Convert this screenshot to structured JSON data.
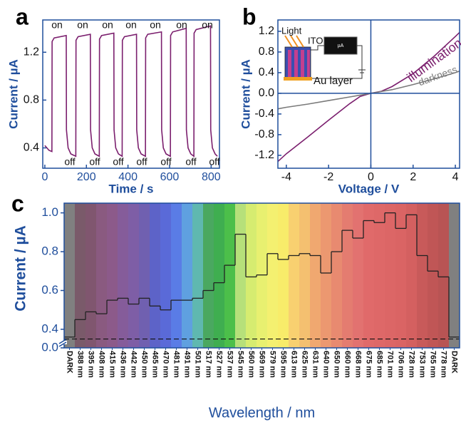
{
  "chart_data": [
    {
      "type": "line",
      "panel_label": "a",
      "x_label": "Time / s",
      "y_label": "Current / µA",
      "x": [
        0,
        20,
        34,
        35,
        45,
        103,
        104,
        112,
        125,
        149,
        150,
        160,
        219,
        220,
        228,
        241,
        262,
        263,
        273,
        332,
        333,
        341,
        354,
        372,
        373,
        383,
        441,
        442,
        450,
        463,
        484,
        485,
        495,
        561,
        562,
        570,
        583,
        604,
        605,
        615,
        680,
        681,
        689,
        702,
        717,
        718,
        728,
        797,
        798,
        806,
        819,
        830
      ],
      "series": [
        {
          "color": "#7b1f6e",
          "values": [
            0.42,
            0.38,
            0.37,
            1.29,
            1.32,
            1.34,
            0.55,
            0.4,
            0.35,
            0.33,
            1.3,
            1.33,
            1.35,
            0.55,
            0.4,
            0.35,
            0.33,
            1.31,
            1.34,
            1.36,
            0.55,
            0.4,
            0.35,
            0.33,
            1.3,
            1.33,
            1.35,
            0.55,
            0.4,
            0.35,
            0.33,
            1.32,
            1.35,
            1.37,
            0.55,
            0.4,
            0.35,
            0.33,
            1.34,
            1.37,
            1.4,
            0.55,
            0.4,
            0.35,
            0.33,
            1.36,
            1.39,
            1.42,
            0.55,
            0.4,
            0.35,
            0.33
          ]
        }
      ],
      "xlim": [
        -10,
        840
      ],
      "xticks": [
        0,
        200,
        400,
        600,
        800
      ],
      "ylim": [
        0.23,
        1.47
      ],
      "yticks": [
        0.4,
        0.8,
        1.2
      ],
      "on_labels": [
        "on",
        "on",
        "on",
        "on",
        "on",
        "on",
        "on"
      ],
      "off_labels": [
        "off",
        "off",
        "off",
        "off",
        "off",
        "off",
        "off"
      ]
    },
    {
      "type": "line",
      "panel_label": "b",
      "x_label": "Voltage / V",
      "y_label": "Current / µA",
      "x": [
        -4.4,
        -4,
        -3,
        -2,
        -1,
        -0.5,
        0,
        0.5,
        1,
        2,
        3,
        4,
        4.2
      ],
      "series": [
        {
          "name": "illumination",
          "color": "#7b1f6e",
          "values": [
            -1.32,
            -1.17,
            -0.85,
            -0.52,
            -0.2,
            -0.06,
            0,
            0.04,
            0.13,
            0.38,
            0.72,
            1.1,
            1.18
          ]
        },
        {
          "name": "darkness",
          "color": "#7a7a7a",
          "values": [
            -0.3,
            -0.27,
            -0.21,
            -0.14,
            -0.07,
            -0.035,
            0,
            0.035,
            0.07,
            0.17,
            0.28,
            0.4,
            0.43
          ]
        }
      ],
      "xlim": [
        -4.4,
        4.2
      ],
      "xticks": [
        -4,
        -2,
        0,
        2,
        4
      ],
      "ylim": [
        -1.45,
        1.42
      ],
      "yticks": [
        -1.2,
        -0.8,
        -0.4,
        {
          "value": 0,
          "label": "0.0"
        },
        0.4,
        0.8,
        1.2
      ],
      "inset_labels": {
        "light": "Light",
        "ito": "ITO",
        "au": "Au layer",
        "meter": "µA"
      }
    },
    {
      "type": "step",
      "panel_label": "c",
      "x_label": "Wavelength / nm",
      "y_label": "Current / µA",
      "categories": [
        "DARK",
        "388 nm",
        "395 nm",
        "408 nm",
        "415 nm",
        "436 nm",
        "442 nm",
        "450 nm",
        "465 nm",
        "470 nm",
        "481 nm",
        "491 nm",
        "501 nm",
        "517 nm",
        "527 nm",
        "537 nm",
        "545 nm",
        "560 nm",
        "569 nm",
        "579 nm",
        "595 nm",
        "613 nm",
        "625 nm",
        "631 nm",
        "640 nm",
        "650 nm",
        "660 nm",
        "668 nm",
        "675 nm",
        "685 nm",
        "701 nm",
        "706 nm",
        "728 nm",
        "753 nm",
        "765 nm",
        "778 nm",
        "DARK"
      ],
      "values": [
        0.36,
        0.45,
        0.49,
        0.48,
        0.55,
        0.56,
        0.53,
        0.56,
        0.52,
        0.5,
        0.55,
        0.55,
        0.56,
        0.6,
        0.64,
        0.73,
        0.89,
        0.67,
        0.68,
        0.79,
        0.76,
        0.78,
        0.79,
        0.78,
        0.69,
        0.8,
        0.91,
        0.87,
        0.96,
        0.95,
        1.0,
        0.92,
        0.99,
        0.78,
        0.7,
        0.67,
        0.36
      ],
      "band_colors": [
        "#808080",
        "#7a5a6a",
        "#80566f",
        "#8a5a80",
        "#8c5a8a",
        "#855c9a",
        "#7e5ea6",
        "#7060b0",
        "#5d63c8",
        "#5a6ad8",
        "#5a7ce6",
        "#5fa0e0",
        "#5fb8b0",
        "#4aa860",
        "#3fae50",
        "#4cbf4a",
        "#b6e07a",
        "#d6ec70",
        "#e8f070",
        "#f4f070",
        "#f8ec6a",
        "#f8d070",
        "#f4c070",
        "#f0a870",
        "#ec9870",
        "#e88a70",
        "#e47c70",
        "#e27270",
        "#e06a6a",
        "#de6868",
        "#dc6666",
        "#da6464",
        "#d46060",
        "#c85a5a",
        "#c05656",
        "#b85454",
        "#808080"
      ],
      "color": "#222222",
      "reference_line": 0.35,
      "ylim": [
        0,
        1.05
      ],
      "y_break": [
        0.03,
        0.33
      ],
      "yticks": [
        {
          "value": 0,
          "label": "0.0"
        },
        0.4,
        0.6,
        0.8,
        {
          "value": 1,
          "label": "1.0"
        }
      ]
    }
  ]
}
